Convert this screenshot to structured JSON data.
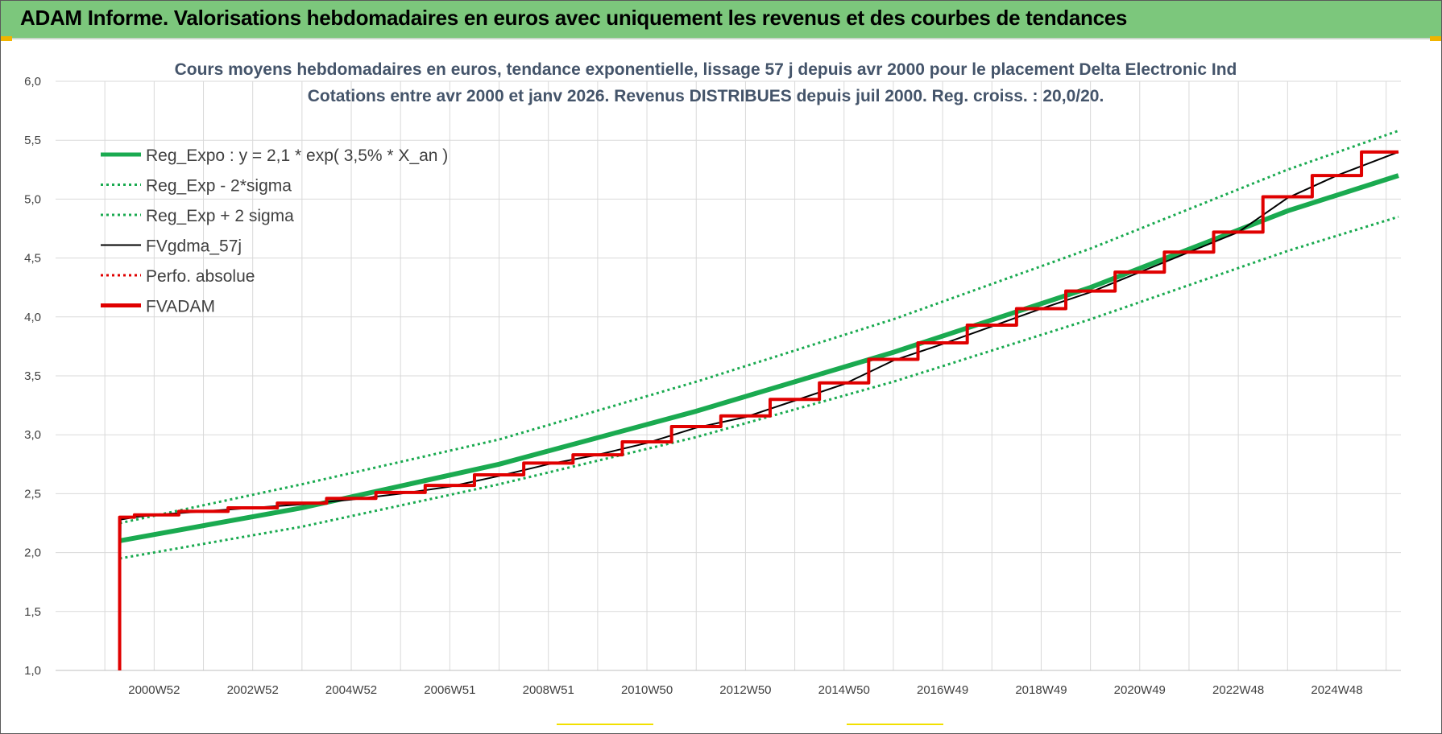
{
  "banner": {
    "title": "ADAM Informe. Valorisations hebdomadaires en euros avec uniquement les revenus et des courbes de tendances"
  },
  "colors": {
    "banner": "#7cc77c",
    "reg_expo": "#1aaa50",
    "fvgdma": "#000000",
    "perfo": "#e00000",
    "fvadam": "#e00000",
    "grid": "#d9d9d9"
  },
  "chart_data": {
    "type": "line",
    "title": "Cours moyens hebdomadaires en euros, tendance exponentielle, lissage 57 j depuis avr 2000 pour le placement Delta Electronic Ind",
    "subtitle": "Cotations entre avr 2000 et janv 2026.  Revenus DISTRIBUES depuis juil 2000.  Reg. croiss. : 20,0/20.",
    "xlim": [
      1999.0,
      2026.3
    ],
    "ylim": [
      1.0,
      6.0
    ],
    "y_ticks": [
      "1,0",
      "1,5",
      "2,0",
      "2,5",
      "3,0",
      "3,5",
      "4,0",
      "4,5",
      "5,0",
      "5,5",
      "6,0"
    ],
    "x_tick_labels": [
      {
        "x": 2001.0,
        "label": "2000W52"
      },
      {
        "x": 2003.0,
        "label": "2002W52"
      },
      {
        "x": 2005.0,
        "label": "2004W52"
      },
      {
        "x": 2007.0,
        "label": "2006W51"
      },
      {
        "x": 2009.0,
        "label": "2008W51"
      },
      {
        "x": 2011.0,
        "label": "2010W50"
      },
      {
        "x": 2013.0,
        "label": "2012W50"
      },
      {
        "x": 2015.0,
        "label": "2014W50"
      },
      {
        "x": 2017.0,
        "label": "2016W49"
      },
      {
        "x": 2019.0,
        "label": "2018W49"
      },
      {
        "x": 2021.0,
        "label": "2020W49"
      },
      {
        "x": 2023.0,
        "label": "2022W48"
      },
      {
        "x": 2025.0,
        "label": "2024W48"
      }
    ],
    "grid": true,
    "legend_position": "top-left",
    "series": [
      {
        "name": "Reg_Expo : y = 2,1 * exp( 3,5% *  X_an )",
        "style": "solid-thick",
        "color": "#1aaa50",
        "x": [
          2000.3,
          2004.0,
          2008.0,
          2012.0,
          2016.0,
          2020.0,
          2024.0,
          2026.25
        ],
        "values": [
          2.1,
          2.38,
          2.75,
          3.2,
          3.7,
          4.25,
          4.9,
          5.2
        ]
      },
      {
        "name": "Reg_Exp - 2*sigma",
        "style": "dotted",
        "color": "#1aaa50",
        "x": [
          2000.3,
          2004.0,
          2008.0,
          2012.0,
          2016.0,
          2020.0,
          2024.0,
          2026.25
        ],
        "values": [
          1.95,
          2.22,
          2.58,
          2.98,
          3.45,
          3.98,
          4.56,
          4.85
        ]
      },
      {
        "name": "Reg_Exp + 2 sigma",
        "style": "dotted",
        "color": "#1aaa50",
        "x": [
          2000.3,
          2004.0,
          2008.0,
          2012.0,
          2016.0,
          2020.0,
          2024.0,
          2026.25
        ],
        "values": [
          2.25,
          2.58,
          2.96,
          3.45,
          3.98,
          4.58,
          5.25,
          5.58
        ]
      },
      {
        "name": "FVgdma_57j",
        "style": "solid-thin",
        "color": "#000000",
        "x": [
          2000.3,
          2000.32,
          2000.6,
          2001.0,
          2002.0,
          2003.0,
          2004.0,
          2005.0,
          2006.0,
          2007.0,
          2008.0,
          2009.0,
          2010.0,
          2011.0,
          2012.0,
          2013.0,
          2014.0,
          2015.0,
          2016.0,
          2017.0,
          2018.0,
          2019.0,
          2020.0,
          2021.0,
          2022.0,
          2023.0,
          2024.0,
          2025.0,
          2026.25
        ],
        "values": [
          1.0,
          2.28,
          2.3,
          2.32,
          2.35,
          2.38,
          2.41,
          2.45,
          2.5,
          2.56,
          2.65,
          2.75,
          2.83,
          2.93,
          3.06,
          3.15,
          3.29,
          3.43,
          3.63,
          3.77,
          3.92,
          4.07,
          4.21,
          4.38,
          4.55,
          4.72,
          5.01,
          5.2,
          5.4
        ]
      },
      {
        "name": "Perfo. absolue",
        "style": "dotted",
        "color": "#e00000",
        "x": [],
        "values": []
      },
      {
        "name": "FVADAM",
        "style": "step-thick",
        "color": "#e00000",
        "x": [
          2000.3,
          2000.3,
          2000.6,
          2001.5,
          2002.5,
          2003.5,
          2004.5,
          2005.5,
          2006.5,
          2007.5,
          2008.5,
          2009.5,
          2010.5,
          2011.5,
          2012.5,
          2013.5,
          2014.5,
          2015.5,
          2016.5,
          2017.5,
          2018.5,
          2019.5,
          2020.5,
          2021.5,
          2022.5,
          2023.5,
          2024.5,
          2025.5,
          2026.25
        ],
        "values": [
          1.0,
          2.3,
          2.32,
          2.35,
          2.38,
          2.42,
          2.46,
          2.51,
          2.57,
          2.66,
          2.76,
          2.83,
          2.94,
          3.07,
          3.16,
          3.3,
          3.44,
          3.64,
          3.78,
          3.93,
          4.07,
          4.22,
          4.38,
          4.55,
          4.72,
          5.02,
          5.2,
          5.4,
          5.4
        ]
      }
    ]
  }
}
